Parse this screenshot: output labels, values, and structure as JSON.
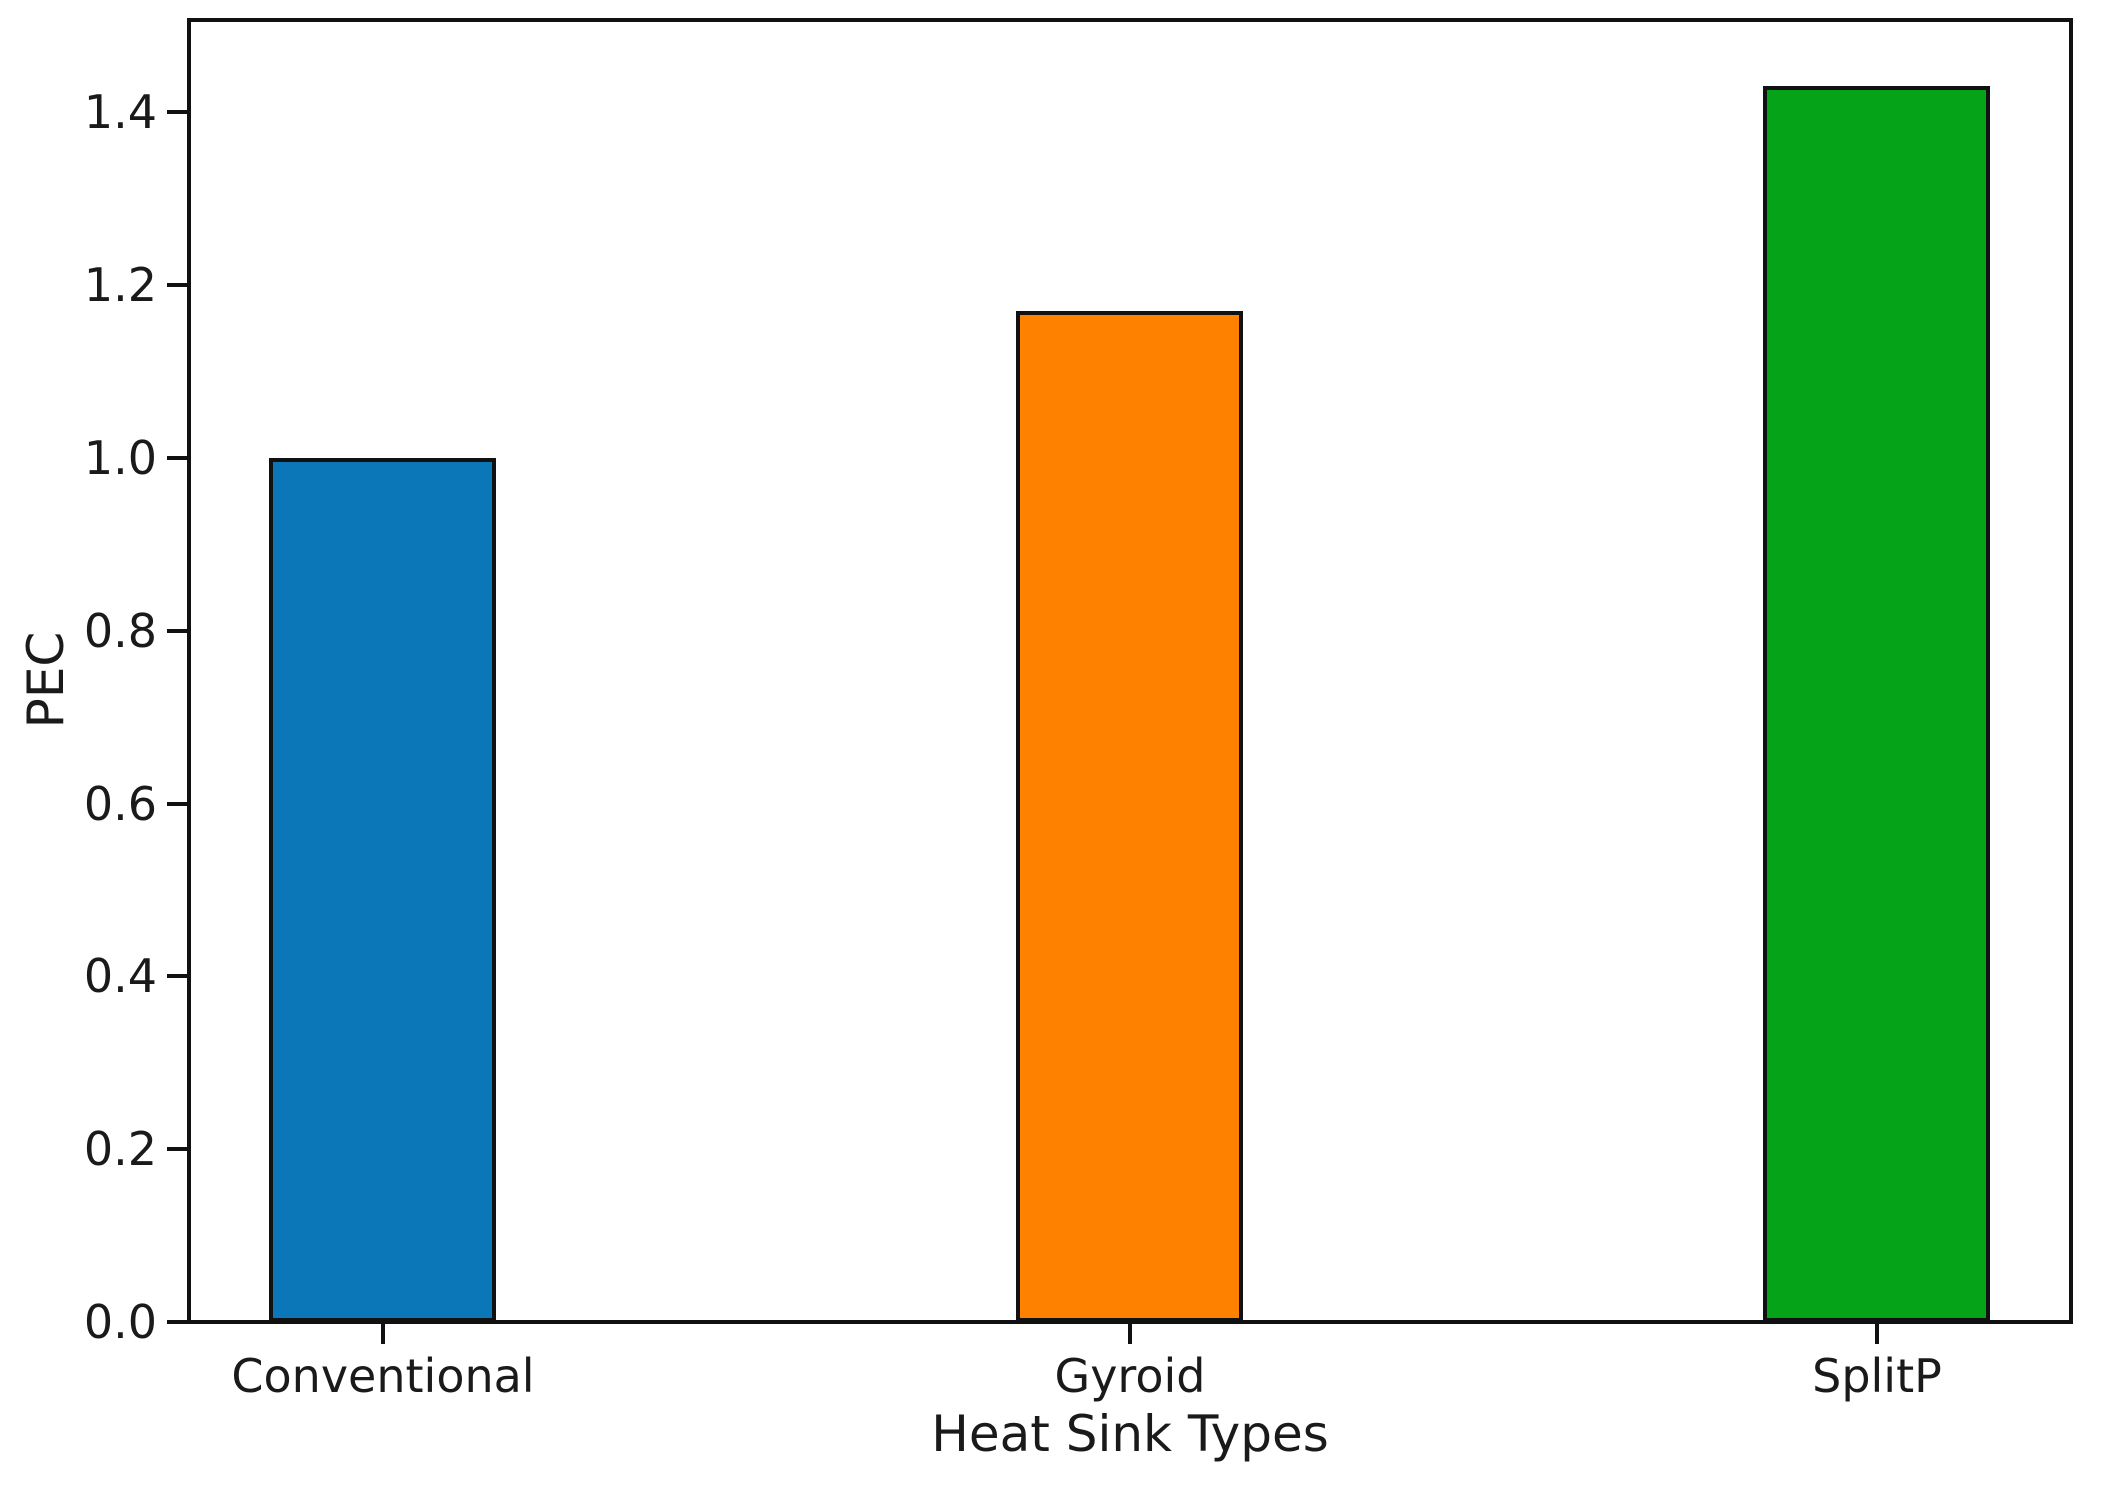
{
  "chart_data": {
    "type": "bar",
    "title": "",
    "xlabel": "Heat Sink Types",
    "ylabel": "PEC",
    "categories": [
      "Conventional",
      "Gyroid",
      "SplitP"
    ],
    "values": [
      1.0,
      1.17,
      1.43
    ],
    "bar_colors": [
      "#0b77b8",
      "#fe8200",
      "#05a318"
    ],
    "bar_edge_color": "#111111",
    "yticks": [
      0.0,
      0.2,
      0.4,
      0.6,
      0.8,
      1.0,
      1.2,
      1.4
    ],
    "ylim": [
      0,
      1.51
    ],
    "grid": false,
    "legend": false
  }
}
